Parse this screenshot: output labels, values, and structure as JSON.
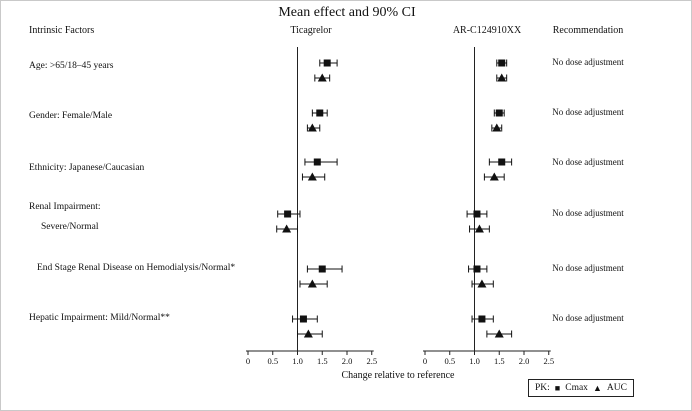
{
  "chart_data": {
    "type": "forest",
    "title": "Mean effect and 90% CI",
    "xlabel": "Change relative to reference",
    "ci_level": "90% CI",
    "xlim": [
      0,
      2.5
    ],
    "x_tick_labels": [
      "0",
      "0.5",
      "1.0",
      "1.5",
      "2.0",
      "2.5"
    ],
    "reference_line": 1.0,
    "grid": false,
    "legend_position": "bottom-right",
    "columns": {
      "factors": "Intrinsic Factors",
      "drug1": "Ticagrelor",
      "drug2": "AR-C124910XX",
      "recommendation": "Recommendation"
    },
    "series": [
      {
        "name": "Ticagrelor",
        "key": "ticagrelor"
      },
      {
        "name": "AR-C124910XX",
        "key": "arc"
      }
    ],
    "markers": {
      "square": "Cmax",
      "triangle": "AUC"
    },
    "legend": {
      "prefix": "PK:",
      "square_glyph": "■",
      "cmax": "Cmax",
      "triangle_glyph": "▲",
      "auc": "AUC"
    },
    "rows": [
      {
        "factor_lines": [
          "Age: >65/18–45 years"
        ],
        "recommendation": "No dose adjustment",
        "ticagrelor": {
          "cmax": {
            "est": 1.6,
            "lo": 1.45,
            "hi": 1.8
          },
          "auc": {
            "est": 1.5,
            "lo": 1.35,
            "hi": 1.65
          }
        },
        "arc": {
          "cmax": {
            "est": 1.55,
            "lo": 1.45,
            "hi": 1.65
          },
          "auc": {
            "est": 1.55,
            "lo": 1.45,
            "hi": 1.65
          }
        }
      },
      {
        "factor_lines": [
          "Gender: Female/Male"
        ],
        "recommendation": "No dose adjustment",
        "ticagrelor": {
          "cmax": {
            "est": 1.45,
            "lo": 1.3,
            "hi": 1.6
          },
          "auc": {
            "est": 1.3,
            "lo": 1.2,
            "hi": 1.45
          }
        },
        "arc": {
          "cmax": {
            "est": 1.5,
            "lo": 1.4,
            "hi": 1.6
          },
          "auc": {
            "est": 1.45,
            "lo": 1.35,
            "hi": 1.55
          }
        }
      },
      {
        "factor_lines": [
          "Ethnicity: Japanese/Caucasian"
        ],
        "recommendation": "No dose adjustment",
        "ticagrelor": {
          "cmax": {
            "est": 1.4,
            "lo": 1.15,
            "hi": 1.8
          },
          "auc": {
            "est": 1.3,
            "lo": 1.1,
            "hi": 1.55
          }
        },
        "arc": {
          "cmax": {
            "est": 1.55,
            "lo": 1.3,
            "hi": 1.75
          },
          "auc": {
            "est": 1.4,
            "lo": 1.2,
            "hi": 1.6
          }
        }
      },
      {
        "factor_lines": [
          "Renal Impairment:",
          "Severe/Normal"
        ],
        "recommendation": "No dose adjustment",
        "ticagrelor": {
          "cmax": {
            "est": 0.8,
            "lo": 0.6,
            "hi": 1.05
          },
          "auc": {
            "est": 0.78,
            "lo": 0.58,
            "hi": 1.0
          }
        },
        "arc": {
          "cmax": {
            "est": 1.05,
            "lo": 0.85,
            "hi": 1.25
          },
          "auc": {
            "est": 1.1,
            "lo": 0.9,
            "hi": 1.3
          }
        }
      },
      {
        "factor_lines": [
          "End Stage Renal Disease on Hemodialysis/Normal*"
        ],
        "recommendation": "No dose adjustment",
        "ticagrelor": {
          "cmax": {
            "est": 1.5,
            "lo": 1.2,
            "hi": 1.9
          },
          "auc": {
            "est": 1.3,
            "lo": 1.05,
            "hi": 1.6
          }
        },
        "arc": {
          "cmax": {
            "est": 1.05,
            "lo": 0.88,
            "hi": 1.25
          },
          "auc": {
            "est": 1.15,
            "lo": 0.95,
            "hi": 1.38
          }
        }
      },
      {
        "factor_lines": [
          "Hepatic Impairment: Mild/Normal**"
        ],
        "recommendation": "No dose adjustment",
        "ticagrelor": {
          "cmax": {
            "est": 1.12,
            "lo": 0.9,
            "hi": 1.4
          },
          "auc": {
            "est": 1.22,
            "lo": 1.0,
            "hi": 1.5
          }
        },
        "arc": {
          "cmax": {
            "est": 1.15,
            "lo": 0.95,
            "hi": 1.38
          },
          "auc": {
            "est": 1.5,
            "lo": 1.25,
            "hi": 1.75
          }
        }
      }
    ]
  }
}
